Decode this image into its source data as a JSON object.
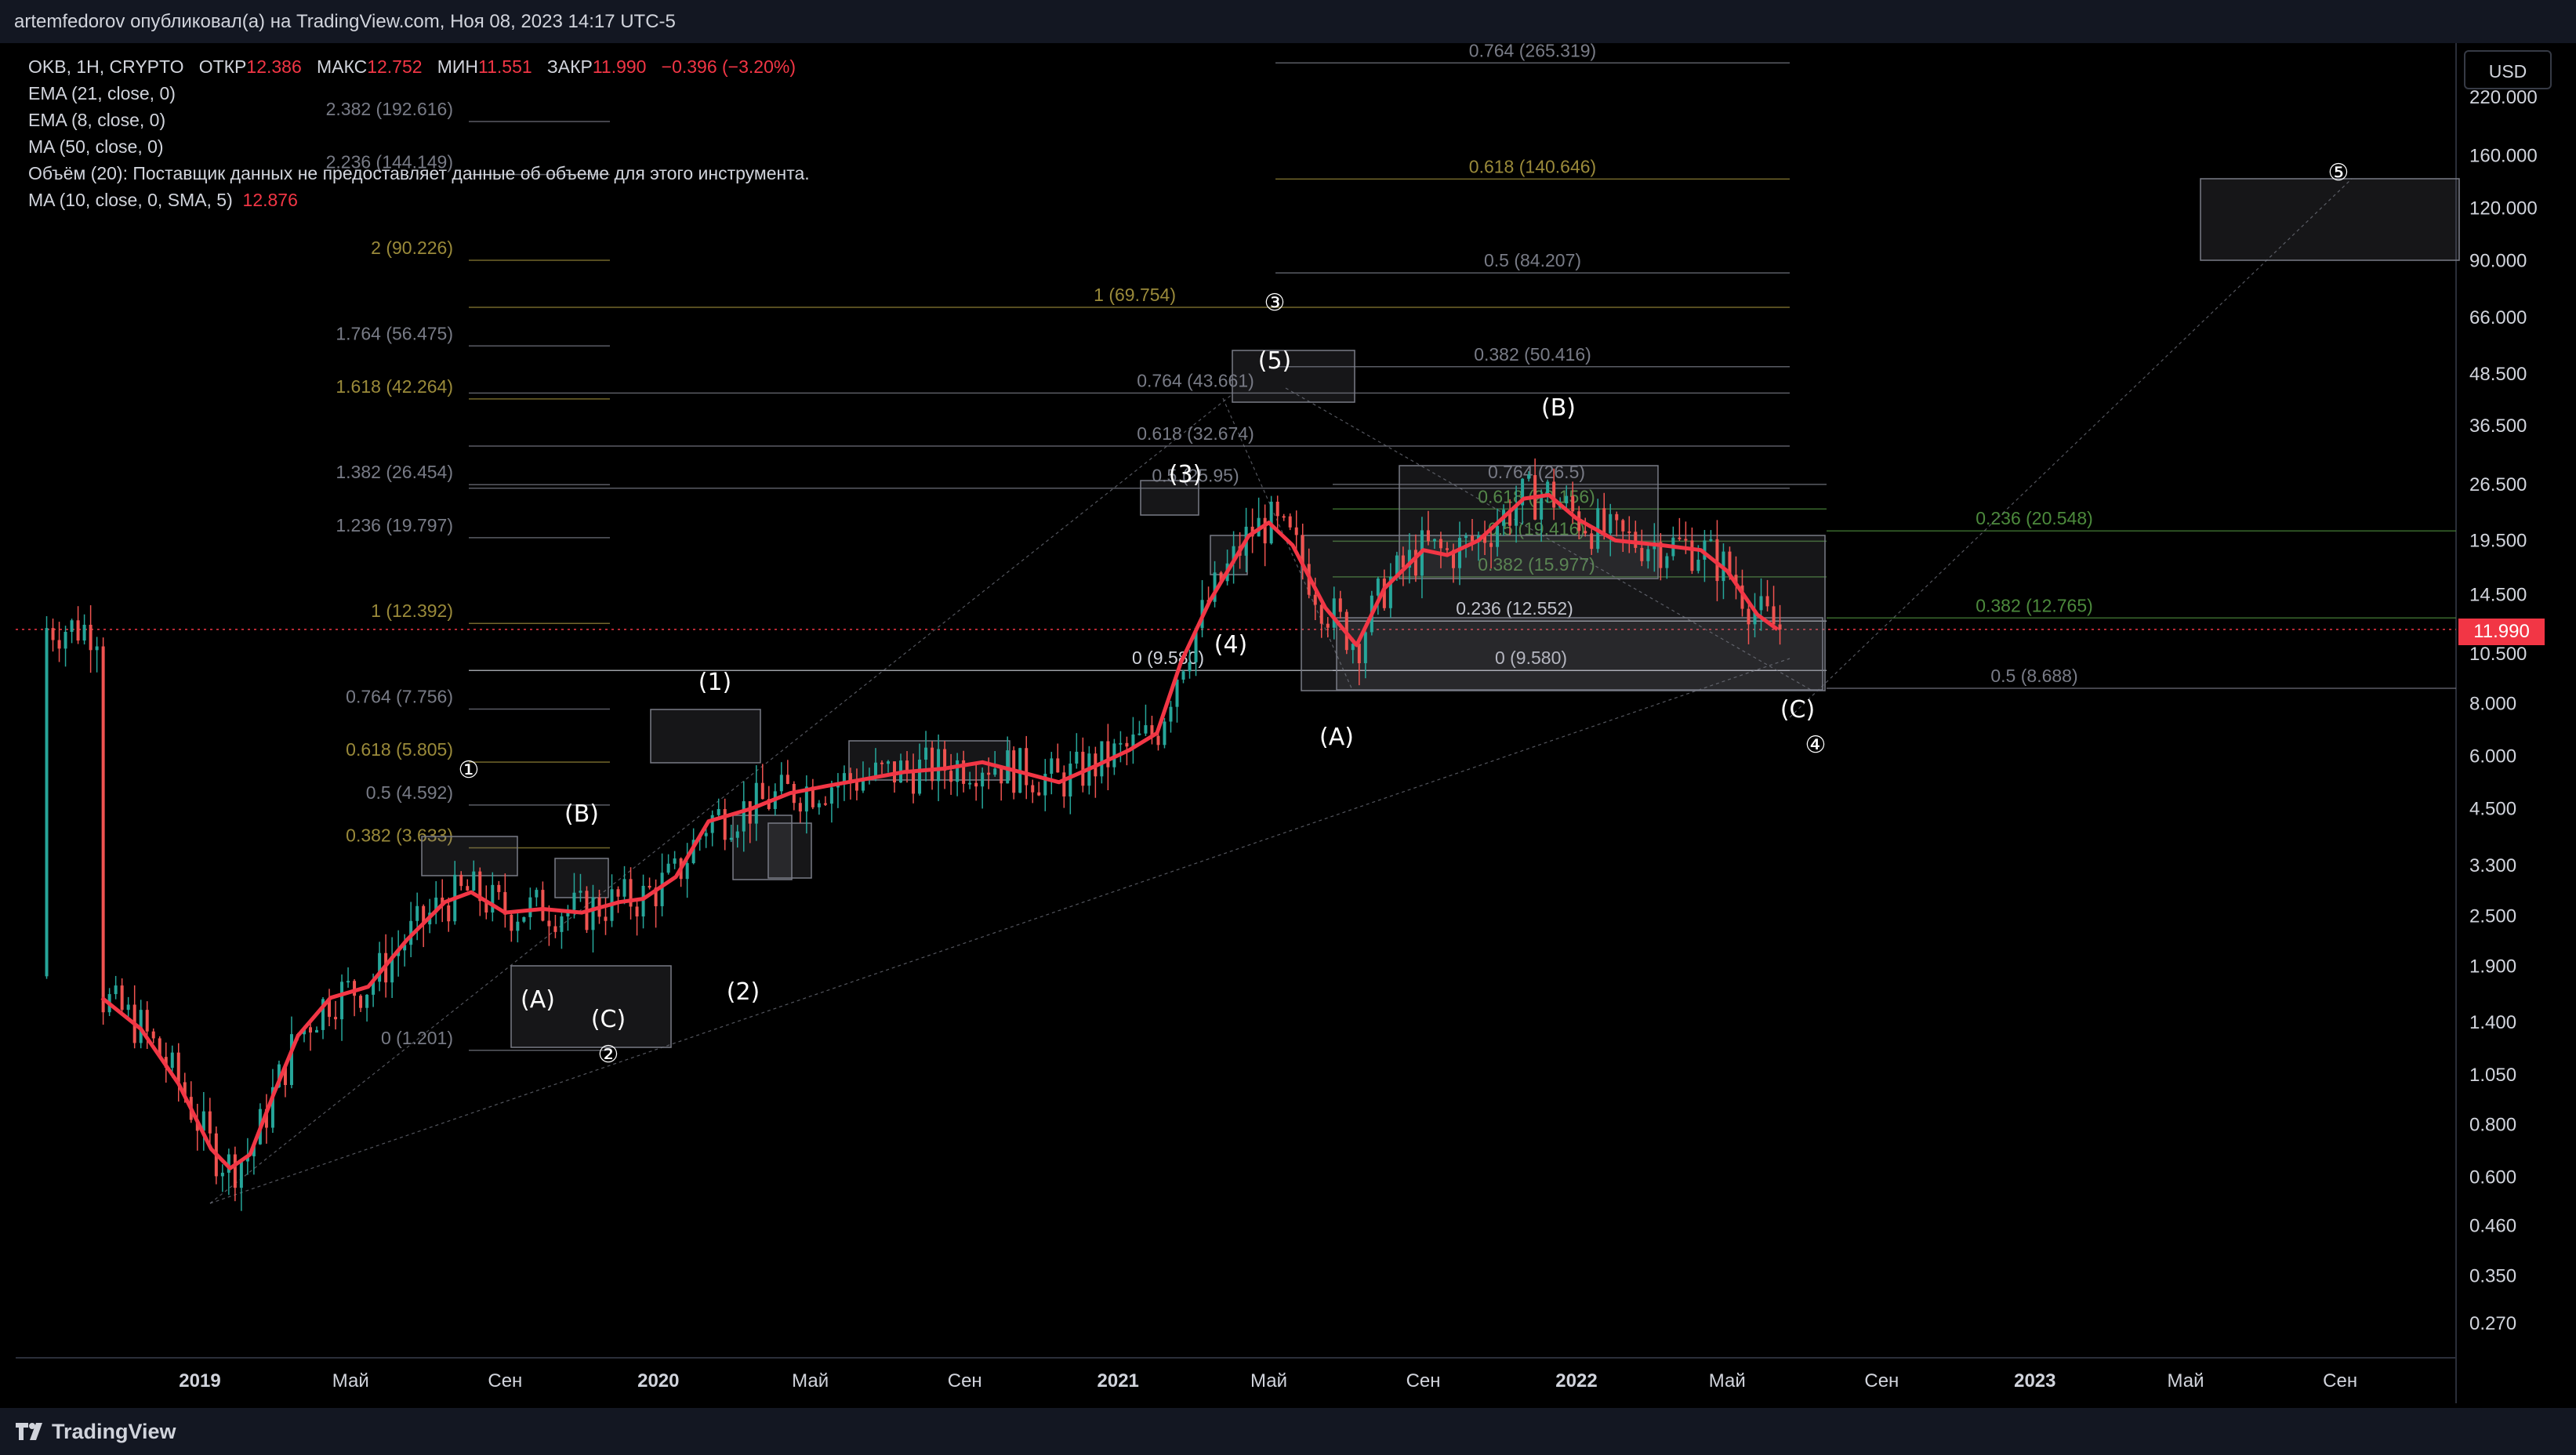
{
  "header": {
    "publish_line": "artemfedorov опубликовал(а) на TradingView.com, Ноя 08, 2023 14:17 UTC-5"
  },
  "legend": {
    "symbol_line_prefix": "OKB, 1H, CRYPTO",
    "open_label": "ОТКР",
    "open_value": "12.386",
    "high_label": "МАКС",
    "high_value": "12.752",
    "low_label": "МИН",
    "low_value": "11.551",
    "close_label": "ЗАКР",
    "close_value": "11.990",
    "change_value": "−0.396 (−3.20%)",
    "ema21": "EMA (21, close, 0)",
    "ema8": "EMA (8, close, 0)",
    "ma50": "MA (50, close, 0)",
    "volume_note": "Объём (20): Поставщик данных не предоставляет данные об объеме для этого инструмента.",
    "ma10_label": "MA (10, close, 0, SMA, 5)",
    "ma10_value": "12.876"
  },
  "toolbar": {
    "currency_button": "USD"
  },
  "price_badge": "11.990",
  "footer": {
    "brand": "TradingView"
  },
  "colors": {
    "background": "#000000",
    "up_candle": "#26a69a",
    "down_candle": "#ef5350",
    "ma_line": "#f23645",
    "fib_gold": "#9a8a3a",
    "fib_gray": "#787b86",
    "fib_green": "#4c8a3c"
  },
  "chart_data": {
    "type": "candlestick",
    "symbol": "OKB",
    "interval": "1H",
    "exchange": "CRYPTO",
    "scale": "log",
    "currency": "USD",
    "y_ticks": [
      "220.000",
      "160.000",
      "120.000",
      "90.000",
      "66.000",
      "48.500",
      "36.500",
      "26.500",
      "19.500",
      "14.500",
      "10.500",
      "8.000",
      "6.000",
      "4.500",
      "3.300",
      "2.500",
      "1.900",
      "1.400",
      "1.050",
      "0.800",
      "0.600",
      "0.460",
      "0.350",
      "0.270"
    ],
    "x_ticks": [
      "2019",
      "Май",
      "Сен",
      "2020",
      "Май",
      "Сен",
      "2021",
      "Май",
      "Сен",
      "2022",
      "Май",
      "Сен",
      "2023",
      "Май",
      "Сен"
    ],
    "last_price": 11.99,
    "ma_series": {
      "name": "MA (10, close, 0, SMA, 5)",
      "points": [
        [
          "2018-10-15",
          1.6
        ],
        [
          "2018-11-15",
          1.35
        ],
        [
          "2018-12-15",
          1.0
        ],
        [
          "2019-01-10",
          0.7
        ],
        [
          "2019-01-25",
          0.63
        ],
        [
          "2019-02-10",
          0.68
        ],
        [
          "2019-03-01",
          0.95
        ],
        [
          "2019-03-20",
          1.3
        ],
        [
          "2019-04-15",
          1.6
        ],
        [
          "2019-05-15",
          1.7
        ],
        [
          "2019-06-15",
          2.2
        ],
        [
          "2019-07-15",
          2.7
        ],
        [
          "2019-08-05",
          2.85
        ],
        [
          "2019-09-01",
          2.55
        ],
        [
          "2019-10-01",
          2.6
        ],
        [
          "2019-11-01",
          2.55
        ],
        [
          "2019-12-01",
          2.7
        ],
        [
          "2019-12-20",
          2.75
        ],
        [
          "2020-01-15",
          3.1
        ],
        [
          "2020-02-10",
          4.2
        ],
        [
          "2020-03-15",
          4.5
        ],
        [
          "2020-04-15",
          4.9
        ],
        [
          "2020-05-15",
          5.1
        ],
        [
          "2020-06-15",
          5.3
        ],
        [
          "2020-07-15",
          5.5
        ],
        [
          "2020-08-15",
          5.6
        ],
        [
          "2020-09-15",
          5.8
        ],
        [
          "2020-10-15",
          5.5
        ],
        [
          "2020-11-15",
          5.2
        ],
        [
          "2020-12-15",
          5.7
        ],
        [
          "2021-01-10",
          6.2
        ],
        [
          "2021-02-01",
          6.8
        ],
        [
          "2021-02-20",
          10.0
        ],
        [
          "2021-03-15",
          14.0
        ],
        [
          "2021-04-15",
          20.0
        ],
        [
          "2021-05-01",
          21.5
        ],
        [
          "2021-05-20",
          19.0
        ],
        [
          "2021-06-15",
          13.5
        ],
        [
          "2021-07-10",
          11.0
        ],
        [
          "2021-08-01",
          15.0
        ],
        [
          "2021-09-01",
          18.5
        ],
        [
          "2021-09-20",
          18.0
        ],
        [
          "2021-10-15",
          19.5
        ],
        [
          "2021-11-20",
          24.5
        ],
        [
          "2021-12-10",
          25.0
        ],
        [
          "2022-01-01",
          22.0
        ],
        [
          "2022-02-01",
          19.5
        ],
        [
          "2022-03-10",
          19.0
        ],
        [
          "2022-04-10",
          18.5
        ],
        [
          "2022-05-01",
          16.5
        ],
        [
          "2022-05-25",
          13.0
        ],
        [
          "2022-06-10",
          11.99
        ]
      ]
    },
    "fib_levels": [
      {
        "label": "2.382 (192.616)",
        "value": 192.616
      },
      {
        "label": "2.236 (144.149)",
        "value": 144.149
      },
      {
        "label": "2 (90.226)",
        "value": 90.226
      },
      {
        "label": "1 (69.754)",
        "value": 69.754
      },
      {
        "label": "1.764 (56.475)",
        "value": 56.475
      },
      {
        "label": "1.618 (42.264)",
        "value": 42.264
      },
      {
        "label": "1.382 (26.454)",
        "value": 26.454
      },
      {
        "label": "1.236 (19.797)",
        "value": 19.797
      },
      {
        "label": "1 (12.392)",
        "value": 12.392
      },
      {
        "label": "0.764 (7.756)",
        "value": 7.756
      },
      {
        "label": "0.618 (5.805)",
        "value": 5.805
      },
      {
        "label": "0.5 (4.592)",
        "value": 4.592
      },
      {
        "label": "0.382 (3.633)",
        "value": 3.633
      },
      {
        "label": "0 (1.201)",
        "value": 1.201
      },
      {
        "label": "0.764 (265.319)",
        "value": 265.319
      },
      {
        "label": "0.618 (140.646)",
        "value": 140.646
      },
      {
        "label": "0.5 (84.207)",
        "value": 84.207
      },
      {
        "label": "0.382 (50.416)",
        "value": 50.416
      },
      {
        "label": "0.764 (43.661)",
        "value": 43.661
      },
      {
        "label": "0.618 (32.674)",
        "value": 32.674
      },
      {
        "label": "0.5 (25.95)",
        "value": 25.95
      },
      {
        "label": "0 (9.580)",
        "value": 9.58
      },
      {
        "label": "0.236 (20.548)",
        "value": 20.548
      },
      {
        "label": "0.382 (12.765)",
        "value": 12.765
      },
      {
        "label": "0.5 (8.688)",
        "value": 8.688
      },
      {
        "label": "0.236 (12.552)",
        "value": 12.552
      },
      {
        "label": "0 (9.580)",
        "value": 9.58
      },
      {
        "label": "0.382 (15.977)",
        "value": 15.977
      },
      {
        "label": "0.5 (19.416)",
        "value": 19.416
      },
      {
        "label": "0.618 (23.156)",
        "value": 23.156
      },
      {
        "label": "0.764 (26.5)",
        "value": 26.5
      }
    ],
    "wave_labels": [
      "(1)",
      "(2)",
      "(3)",
      "(4)",
      "(5)",
      "(A)",
      "(B)",
      "(C)",
      "①",
      "②",
      "③",
      "④",
      "⑤"
    ]
  }
}
